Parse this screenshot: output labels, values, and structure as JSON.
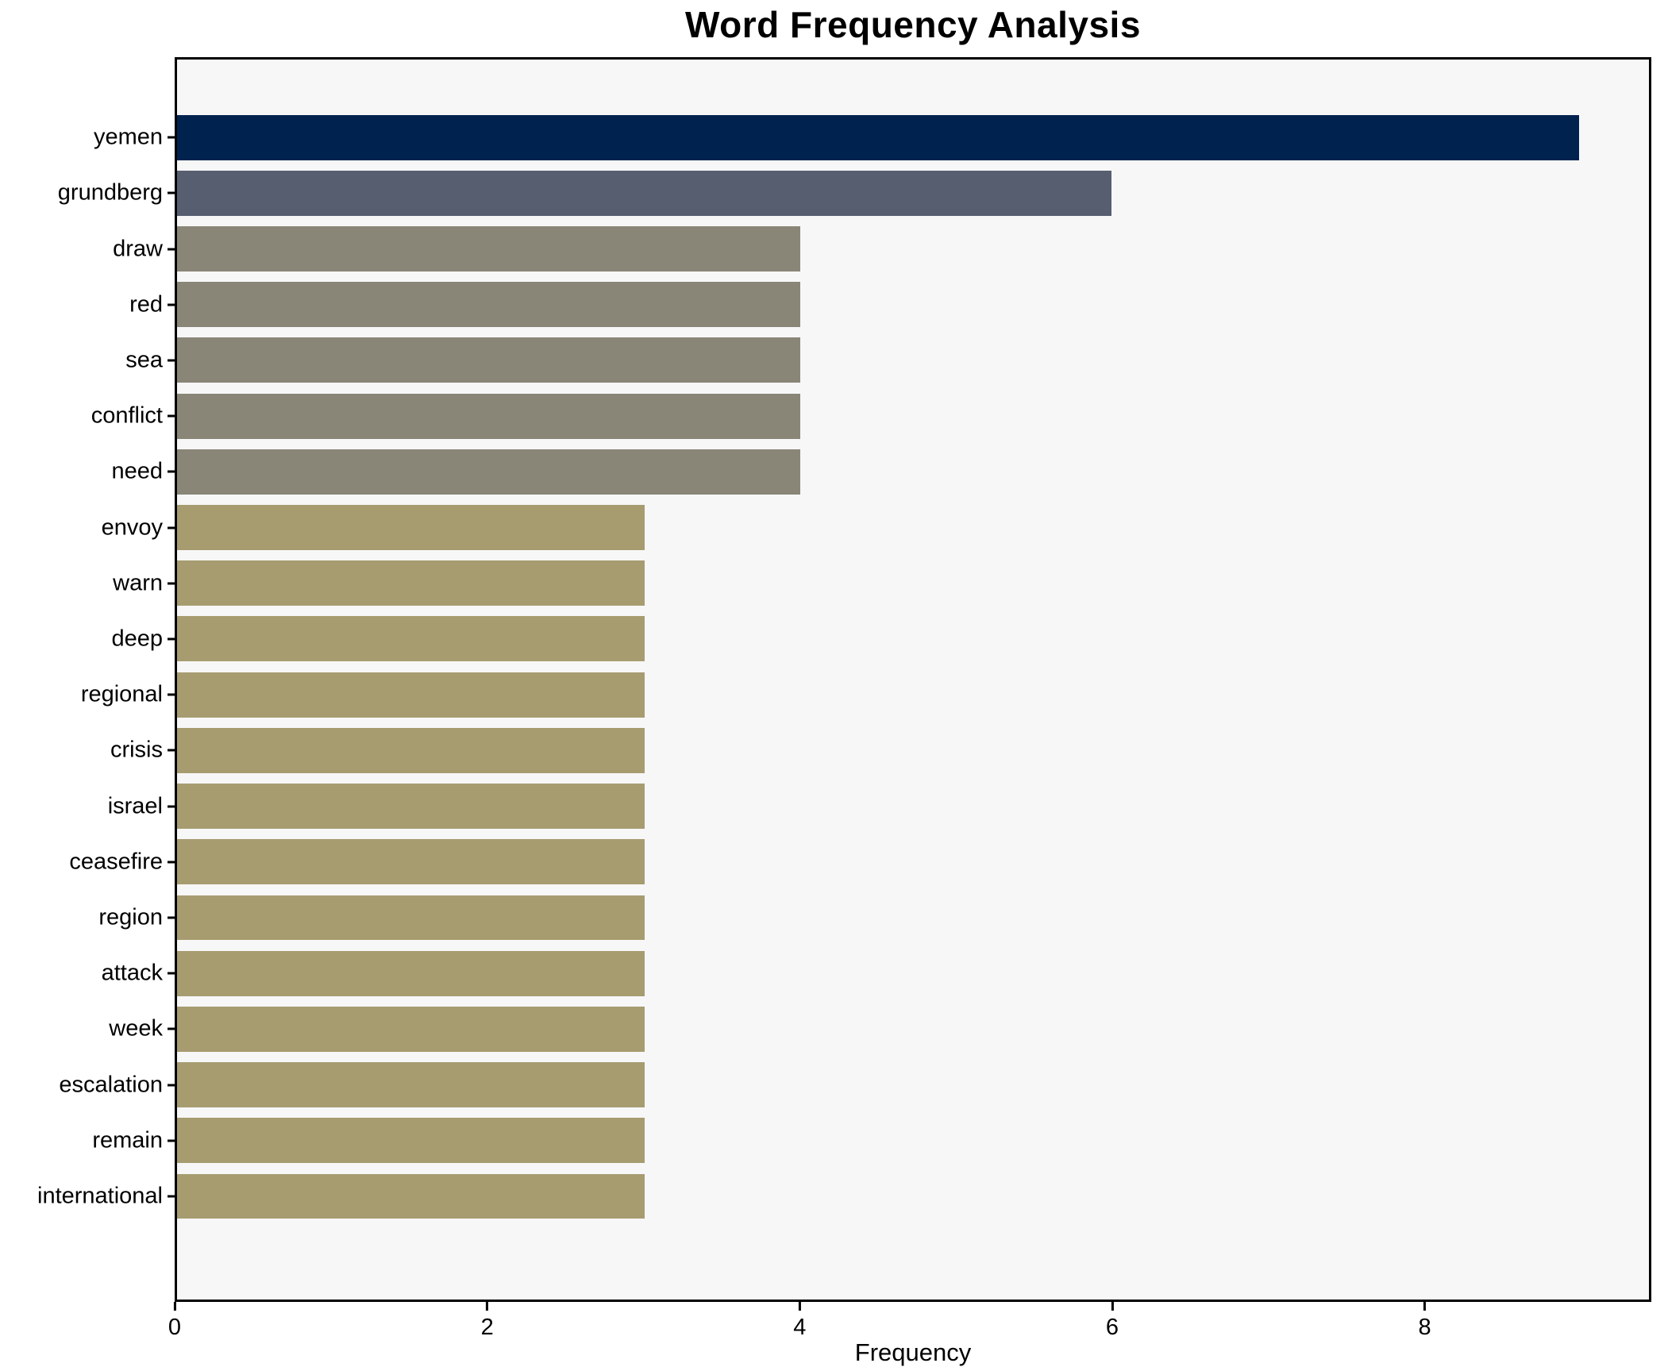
{
  "title": "Word Frequency Analysis",
  "chart_data": {
    "type": "bar",
    "orientation": "horizontal",
    "title": "Word Frequency Analysis",
    "xlabel": "Frequency",
    "ylabel": "",
    "categories": [
      "yemen",
      "grundberg",
      "draw",
      "red",
      "sea",
      "conflict",
      "need",
      "envoy",
      "warn",
      "deep",
      "regional",
      "crisis",
      "israel",
      "ceasefire",
      "region",
      "attack",
      "week",
      "escalation",
      "remain",
      "international"
    ],
    "values": [
      9,
      6,
      4,
      4,
      4,
      4,
      4,
      3,
      3,
      3,
      3,
      3,
      3,
      3,
      3,
      3,
      3,
      3,
      3,
      3
    ],
    "bar_colors": [
      "#00224e",
      "#565e70",
      "#8a8677",
      "#8a8677",
      "#8a8677",
      "#8a8677",
      "#8a8677",
      "#a69c70",
      "#a69c70",
      "#a69c70",
      "#a69c70",
      "#a69c70",
      "#a69c70",
      "#a69c70",
      "#a69c70",
      "#a69c70",
      "#a69c70",
      "#a69c70",
      "#a69c70",
      "#a69c70"
    ],
    "xticks": [
      0,
      2,
      4,
      6,
      8
    ],
    "xlim": [
      0,
      9.45
    ],
    "grid": false,
    "legend": null,
    "plot_background": "#f7f7f8",
    "figure_background": "#ffffff",
    "spine_color": "#000000"
  }
}
